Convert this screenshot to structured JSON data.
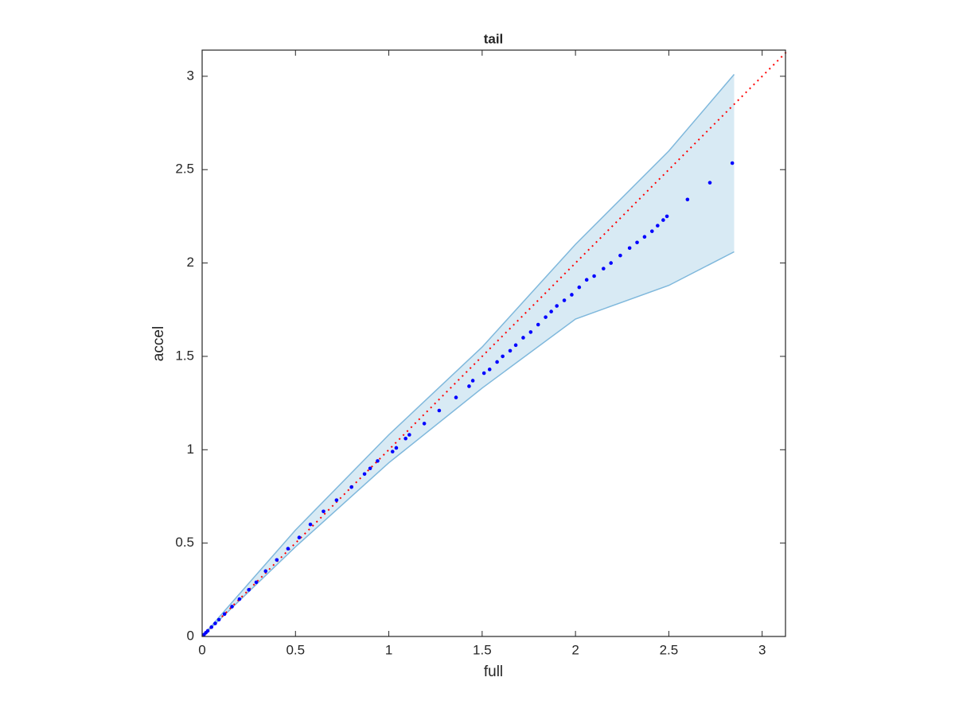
{
  "chart_data": {
    "type": "scatter",
    "title": "tail",
    "x_label": "full",
    "y_label": "accel",
    "xlim": [
      0,
      3.125
    ],
    "ylim": [
      0,
      3.14
    ],
    "xticks": [
      0,
      0.5,
      1,
      1.5,
      2,
      2.5,
      3
    ],
    "yticks": [
      0,
      0.5,
      1,
      1.5,
      2,
      2.5,
      3
    ],
    "color": "#0000ff",
    "x": [
      0.01,
      0.02,
      0.03,
      0.05,
      0.07,
      0.09,
      0.12,
      0.16,
      0.2,
      0.25,
      0.29,
      0.34,
      0.4,
      0.46,
      0.52,
      0.58,
      0.65,
      0.72,
      0.8,
      0.87,
      0.9,
      0.94,
      1.02,
      1.04,
      1.09,
      1.11,
      1.19,
      1.27,
      1.36,
      1.43,
      1.45,
      1.51,
      1.54,
      1.58,
      1.61,
      1.65,
      1.68,
      1.72,
      1.76,
      1.8,
      1.84,
      1.87,
      1.9,
      1.94,
      1.98,
      2.02,
      2.06,
      2.1,
      2.15,
      2.19,
      2.24,
      2.29,
      2.33,
      2.37,
      2.41,
      2.44,
      2.47,
      2.49,
      2.6,
      2.72,
      2.84
    ],
    "y": [
      0.01,
      0.02,
      0.03,
      0.05,
      0.07,
      0.09,
      0.12,
      0.16,
      0.2,
      0.25,
      0.29,
      0.35,
      0.41,
      0.47,
      0.53,
      0.6,
      0.67,
      0.73,
      0.8,
      0.87,
      0.9,
      0.94,
      0.99,
      1.01,
      1.06,
      1.08,
      1.14,
      1.21,
      1.28,
      1.34,
      1.37,
      1.41,
      1.43,
      1.47,
      1.5,
      1.53,
      1.56,
      1.6,
      1.63,
      1.67,
      1.71,
      1.74,
      1.77,
      1.8,
      1.83,
      1.87,
      1.91,
      1.93,
      1.97,
      2.0,
      2.04,
      2.08,
      2.11,
      2.14,
      2.17,
      2.2,
      2.23,
      2.25,
      2.34,
      2.43,
      2.535
    ],
    "band": {
      "color": "#7fb8dc",
      "x": [
        0,
        0.5,
        1,
        1.5,
        2,
        2.5,
        2.85
      ],
      "upper": [
        0,
        0.57,
        1.08,
        1.55,
        2.1,
        2.6,
        3.01
      ],
      "lower": [
        0,
        0.48,
        0.93,
        1.33,
        1.7,
        1.88,
        2.06
      ]
    },
    "reference_line": {
      "color": "#ff0000",
      "x": [
        0,
        3.13
      ],
      "y": [
        0,
        3.13
      ]
    }
  }
}
